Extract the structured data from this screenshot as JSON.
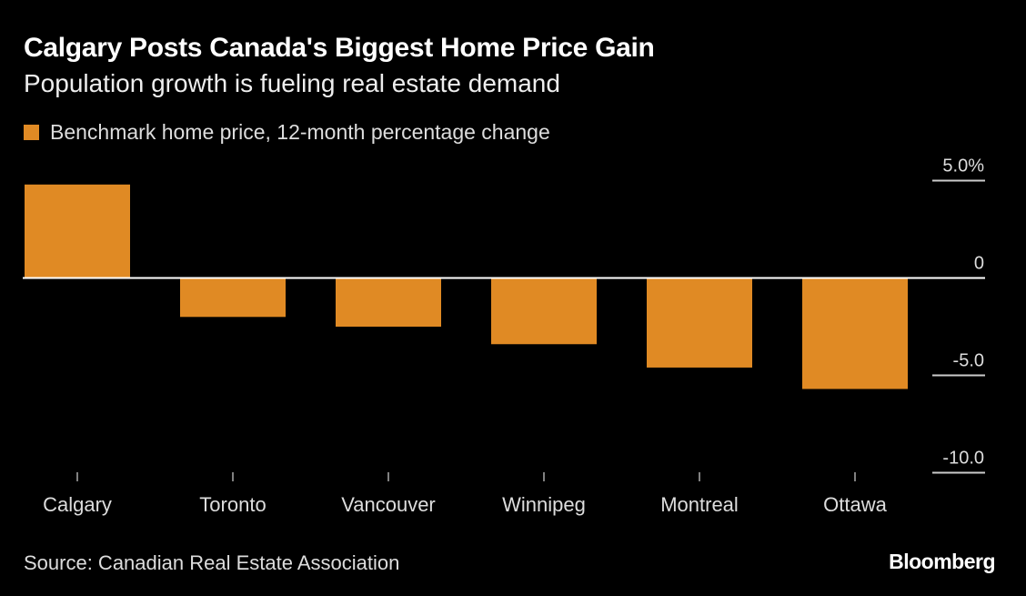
{
  "chart_data": {
    "type": "bar",
    "title": "Calgary Posts Canada's Biggest Home Price Gain",
    "subtitle": "Population growth is fueling real estate demand",
    "categories": [
      "Calgary",
      "Toronto",
      "Vancouver",
      "Winnipeg",
      "Montreal",
      "Ottawa"
    ],
    "series": [
      {
        "name": "Benchmark home price, 12-month percentage change",
        "values": [
          4.8,
          -2.0,
          -2.5,
          -3.4,
          -4.6,
          -5.7
        ]
      }
    ],
    "ylim": [
      -10,
      5
    ],
    "yticks": [
      5,
      0,
      -5,
      -10
    ],
    "ytick_labels": [
      "5.0%",
      "0",
      "-5.0",
      "-10.0"
    ],
    "ylabel": "",
    "xlabel": "",
    "legend_position": "top-left",
    "grid": false,
    "colors": {
      "bar": "#E08A24",
      "background": "#000000",
      "axis": "#ffffff"
    }
  },
  "footer": {
    "source": "Source: Canadian Real Estate Association",
    "brand": "Bloomberg"
  }
}
